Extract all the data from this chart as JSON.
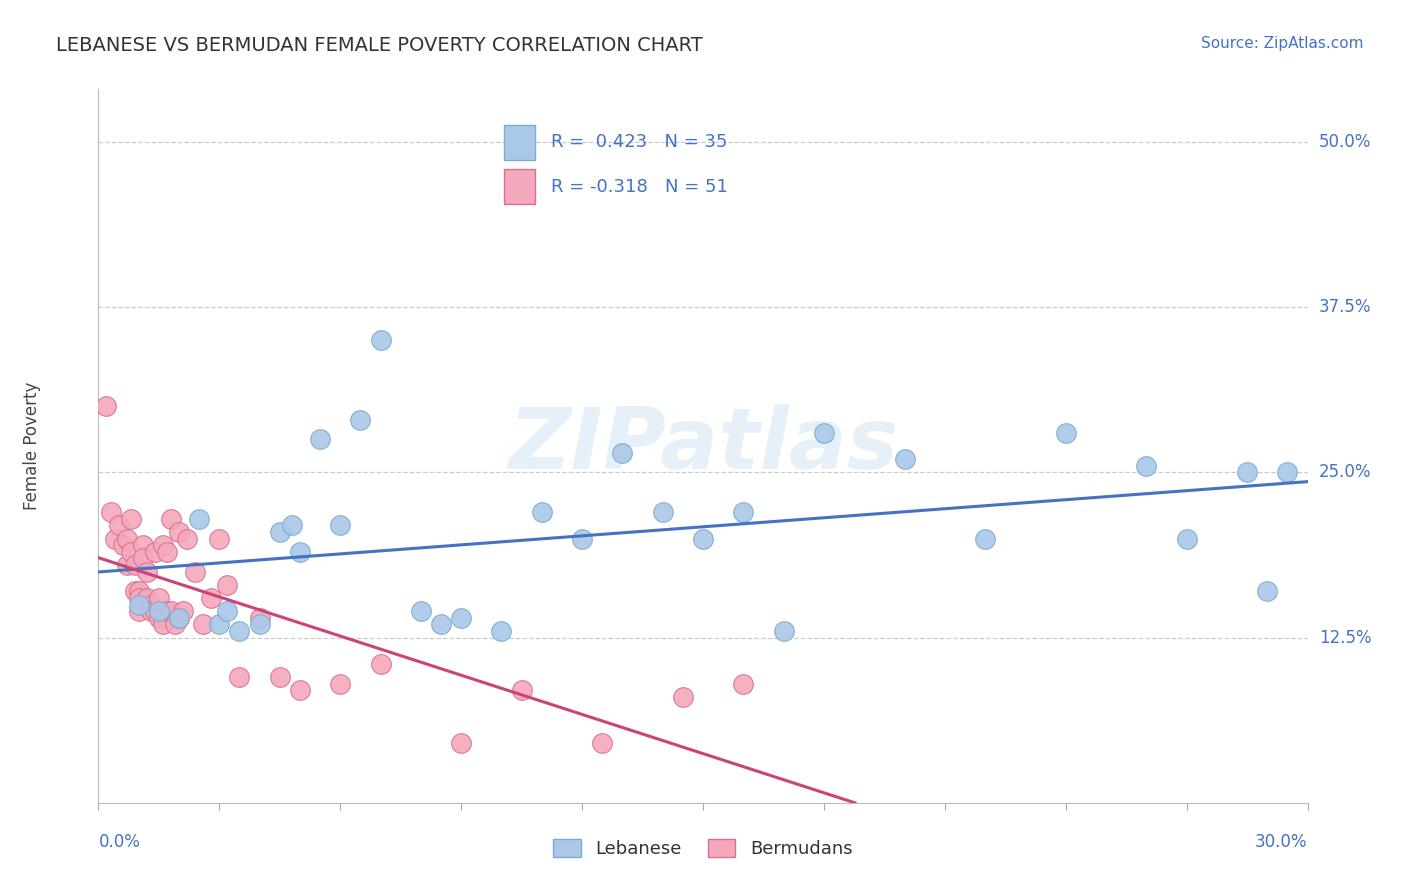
{
  "title": "LEBANESE VS BERMUDAN FEMALE POVERTY CORRELATION CHART",
  "source": "Source: ZipAtlas.com",
  "ylabel": "Female Poverty",
  "xlim": [
    0.0,
    30.0
  ],
  "ylim": [
    0.0,
    54.0
  ],
  "yticks": [
    12.5,
    25.0,
    37.5,
    50.0
  ],
  "ytick_labels": [
    "12.5%",
    "25.0%",
    "37.5%",
    "50.0%"
  ],
  "background_color": "#ffffff",
  "watermark": "ZIPatlas",
  "lebanese_color": "#aac8e8",
  "lebanese_edge": "#7aaad0",
  "bermudan_color": "#f4a8bc",
  "bermudan_edge": "#d87090",
  "line_lebanese_color": "#4472c4",
  "line_bermudan_color": "#cc4477",
  "lebanese_points_x": [
    1.0,
    1.5,
    2.0,
    2.5,
    3.0,
    3.5,
    4.0,
    4.5,
    5.0,
    5.5,
    6.0,
    7.0,
    8.0,
    9.0,
    10.0,
    11.0,
    12.0,
    13.0,
    14.0,
    15.0,
    16.0,
    17.0,
    18.0,
    20.0,
    22.0,
    24.0,
    26.0,
    27.0,
    28.5,
    29.0,
    29.5,
    6.5,
    3.2,
    4.8,
    8.5
  ],
  "lebanese_points_y": [
    15.0,
    14.5,
    14.0,
    21.5,
    13.5,
    13.0,
    13.5,
    20.5,
    19.0,
    27.5,
    21.0,
    35.0,
    14.5,
    14.0,
    13.0,
    22.0,
    20.0,
    26.5,
    22.0,
    20.0,
    22.0,
    13.0,
    28.0,
    26.0,
    20.0,
    28.0,
    25.5,
    20.0,
    25.0,
    16.0,
    25.0,
    29.0,
    14.5,
    21.0,
    13.5
  ],
  "bermudan_points_x": [
    0.2,
    0.3,
    0.4,
    0.5,
    0.6,
    0.7,
    0.7,
    0.8,
    0.8,
    0.9,
    0.9,
    1.0,
    1.0,
    1.0,
    1.1,
    1.1,
    1.2,
    1.2,
    1.3,
    1.3,
    1.4,
    1.4,
    1.5,
    1.5,
    1.6,
    1.6,
    1.7,
    1.7,
    1.8,
    1.8,
    1.9,
    2.0,
    2.0,
    2.1,
    2.2,
    2.4,
    2.6,
    2.8,
    3.0,
    3.5,
    4.0,
    4.5,
    5.0,
    6.0,
    7.0,
    9.0,
    10.5,
    12.5,
    14.5,
    16.0,
    3.2
  ],
  "bermudan_points_y": [
    30.0,
    22.0,
    20.0,
    21.0,
    19.5,
    20.0,
    18.0,
    21.5,
    19.0,
    18.0,
    16.0,
    16.0,
    15.5,
    14.5,
    19.5,
    18.5,
    17.5,
    15.5,
    15.0,
    14.5,
    14.5,
    19.0,
    15.5,
    14.0,
    19.5,
    13.5,
    19.0,
    14.5,
    14.5,
    21.5,
    13.5,
    14.0,
    20.5,
    14.5,
    20.0,
    17.5,
    13.5,
    15.5,
    20.0,
    9.5,
    14.0,
    9.5,
    8.5,
    9.0,
    10.5,
    4.5,
    8.5,
    4.5,
    8.0,
    9.0,
    16.5
  ]
}
